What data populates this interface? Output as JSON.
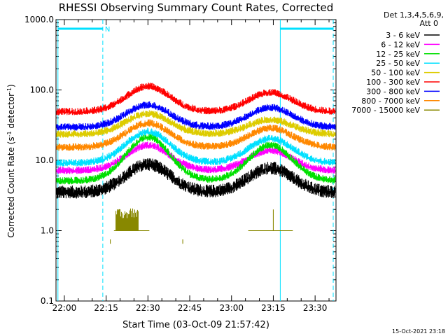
{
  "chart_data": {
    "type": "line",
    "title": "RHESSI Observing Summary Count Rates, Corrected",
    "xlabel": "Start Time (03-Oct-09 21:57:42)",
    "ylabel_main": "Corrected Count Rate (s",
    "ylabel_sup1": "-1",
    "ylabel_mid": " detector",
    "ylabel_sup2": "-1",
    "ylabel_end": ")",
    "y_scale": "log",
    "ylim": [
      0.1,
      1000
    ],
    "xlim_min": [
      -3.0,
      97.5
    ],
    "x_ticks": [
      {
        "min": 0,
        "label": "22:00"
      },
      {
        "min": 15,
        "label": "22:15"
      },
      {
        "min": 30,
        "label": "22:30"
      },
      {
        "min": 45,
        "label": "22:45"
      },
      {
        "min": 60,
        "label": "23:00"
      },
      {
        "min": 75,
        "label": "23:15"
      },
      {
        "min": 90,
        "label": "23:30"
      }
    ],
    "y_ticks": [
      {
        "value": 1000,
        "label": "1000.0"
      },
      {
        "value": 100,
        "label": "100.0"
      },
      {
        "value": 10,
        "label": "10.0"
      },
      {
        "value": 1,
        "label": "1.0"
      },
      {
        "value": 0.1,
        "label": "0.1"
      }
    ],
    "legend_header_1": "Det 1,3,4,5,6,9,",
    "legend_header_2": "Att 0",
    "legend_placement": "right",
    "night_label": "N",
    "night_intervals_min": [
      [
        -2.3,
        13.8
      ],
      [
        77.5,
        96.5
      ]
    ],
    "sun_lines_min": [
      -2.3,
      77.5
    ],
    "series": [
      {
        "name": "3 - 6 keV",
        "color": "#000000",
        "base": 3.4,
        "peak1": 8.5,
        "peak2": 7.5
      },
      {
        "name": "6 - 12 keV",
        "color": "#ff00ff",
        "base": 7.0,
        "peak1": 16.0,
        "peak2": 13.5
      },
      {
        "name": "12 - 25 keV",
        "color": "#00e000",
        "base": 5.0,
        "peak1": 21.0,
        "peak2": 16.0
      },
      {
        "name": "25 - 50 keV",
        "color": "#00e0ff",
        "base": 9.0,
        "peak1": 25.0,
        "peak2": 20.0
      },
      {
        "name": "50 - 100 keV",
        "color": "#ddcc00",
        "base": 23.0,
        "peak1": 45.0,
        "peak2": 37.0
      },
      {
        "name": "100 - 300 keV",
        "color": "#ff0000",
        "base": 48.0,
        "peak1": 110.0,
        "peak2": 90.0
      },
      {
        "name": "300 - 800 keV",
        "color": "#0000ff",
        "base": 29.0,
        "peak1": 60.0,
        "peak2": 55.0
      },
      {
        "name": "800 - 7000 keV",
        "color": "#ff8800",
        "base": 15.0,
        "peak1": 33.0,
        "peak2": 28.0
      },
      {
        "name": "7000 - 15000 keV",
        "color": "#888800",
        "base": null,
        "peak1": 2.0,
        "peak2": 2.0
      }
    ],
    "peaks_center_min": [
      30.0,
      74.0
    ],
    "peaks_halfwidth_min": 14.0,
    "footer_stamp": "15-Oct-2021 23:18"
  }
}
